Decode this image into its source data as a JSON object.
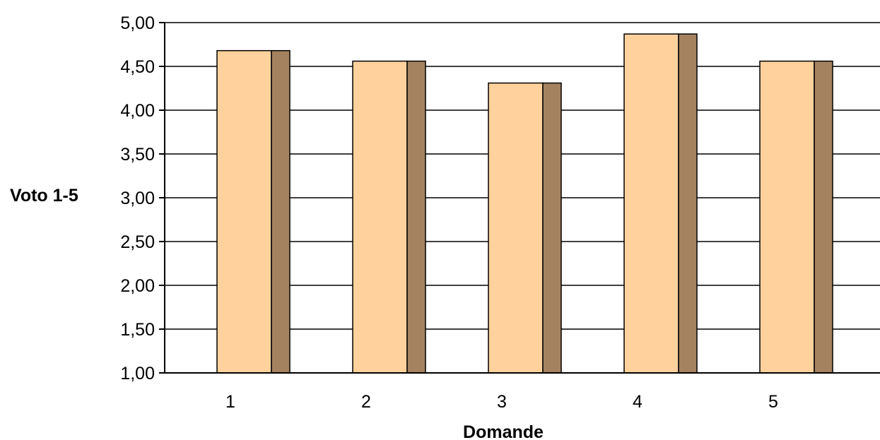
{
  "chart_data": {
    "type": "bar",
    "categories": [
      "1",
      "2",
      "3",
      "4",
      "5"
    ],
    "values": [
      4.68,
      4.56,
      4.31,
      4.87,
      4.56
    ],
    "title": "",
    "xlabel": "Domande",
    "ylabel": "Voto 1-5",
    "ylim": [
      1.0,
      5.0
    ],
    "yticks": [
      "1,00",
      "1,50",
      "2,00",
      "2,50",
      "3,00",
      "3,50",
      "4,00",
      "4,50",
      "5,00"
    ],
    "grid": true,
    "legend": "none",
    "colors": {
      "bar_front": "#FFD19D",
      "bar_side": "#A5825F",
      "grid": "#000000",
      "axis": "#000000"
    }
  }
}
